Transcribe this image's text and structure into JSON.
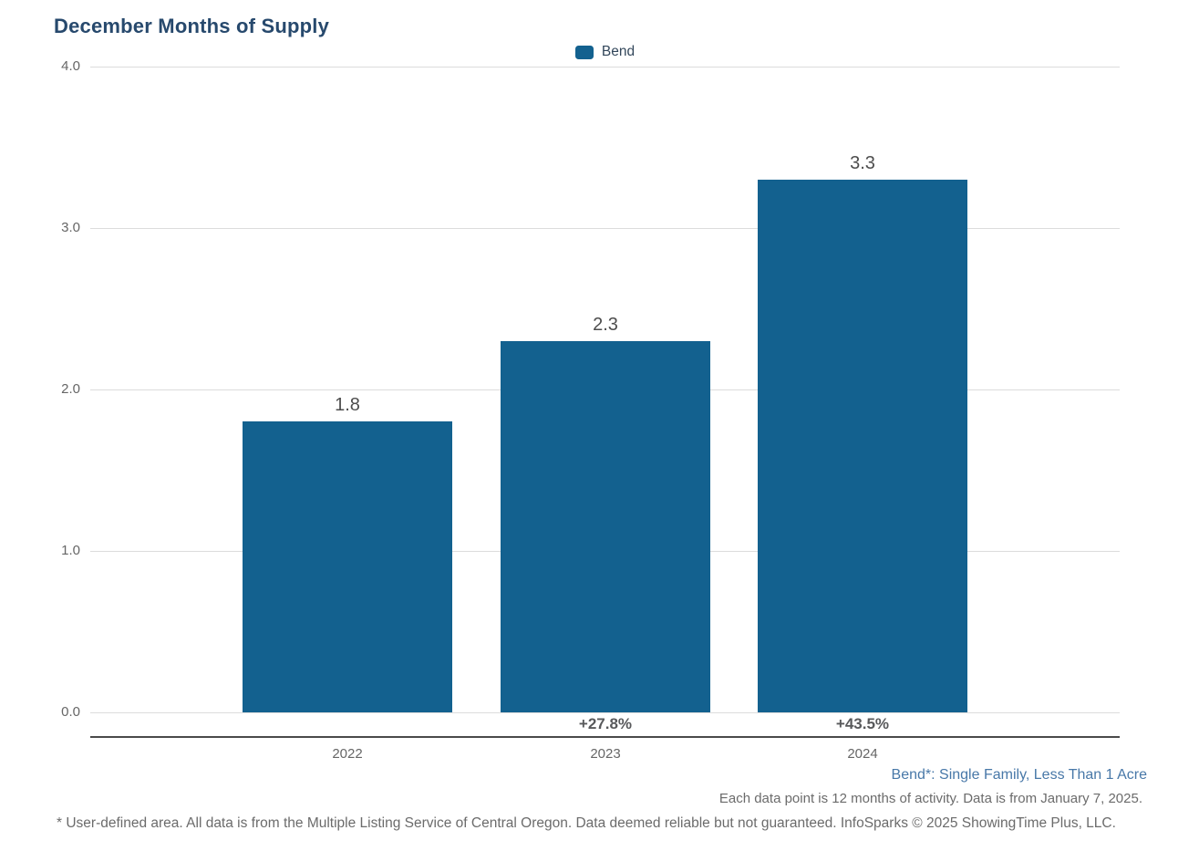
{
  "title": "December Months of Supply",
  "legend": {
    "items": [
      {
        "label": "Bend",
        "color": "#13618F"
      }
    ]
  },
  "chart_data": {
    "type": "bar",
    "categories": [
      "2022",
      "2023",
      "2024"
    ],
    "series": [
      {
        "name": "Bend",
        "values": [
          1.8,
          2.3,
          3.3
        ]
      }
    ],
    "value_labels": [
      "1.8",
      "2.3",
      "3.3"
    ],
    "pct_change_labels": [
      "",
      "+27.8%",
      "+43.5%"
    ],
    "title": "December Months of Supply",
    "xlabel": "",
    "ylabel": "",
    "ylim": [
      0.0,
      4.0
    ],
    "yticks": [
      "0.0",
      "1.0",
      "2.0",
      "3.0",
      "4.0"
    ],
    "grid": "horizontal",
    "legend_position": "top-center"
  },
  "colors": {
    "bar": "#13618F",
    "title_text": "#27496D",
    "legend_text": "#33475B",
    "gridline": "#DCDCDC",
    "axis_line": "#4A4A4A",
    "value_label": "#4D4D4D",
    "pct_label": "#58595B",
    "tick_label": "#666666",
    "note_blue": "#4878A8",
    "note_gray": "#6B6B6B"
  },
  "notes": {
    "area_note": "Bend*: Single Family, Less Than 1 Acre",
    "data_note": "Each data point is 12 months of activity. Data is from January 7, 2025.",
    "footer": "* User-defined area. All data is from the Multiple Listing Service of Central Oregon. Data deemed reliable but not guaranteed. InfoSparks © 2025 ShowingTime Plus, LLC."
  }
}
